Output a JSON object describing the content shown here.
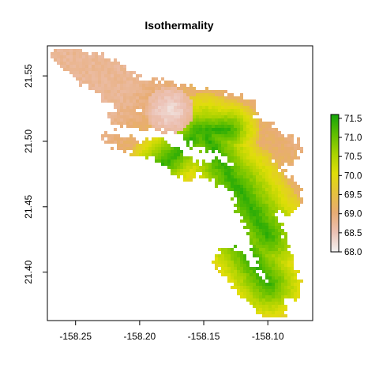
{
  "map": {
    "title": "Isothermality",
    "x_ticks": [
      "-158.25",
      "-158.20",
      "-158.15",
      "-158.10"
    ],
    "x_tick_values": [
      -158.25,
      -158.2,
      -158.15,
      -158.1
    ],
    "y_ticks": [
      "21.40",
      "21.45",
      "21.50",
      "21.55"
    ],
    "y_tick_values": [
      21.4,
      21.45,
      21.5,
      21.55
    ],
    "xlim": [
      -158.272,
      -158.065
    ],
    "ylim": [
      21.363,
      21.573
    ],
    "legend": {
      "labels": [
        "68.0",
        "68.5",
        "69.0",
        "69.5",
        "70.0",
        "70.5",
        "71.0",
        "71.5"
      ],
      "values": [
        68.0,
        68.5,
        69.0,
        69.5,
        70.0,
        70.5,
        71.0,
        71.5
      ],
      "range": [
        68.0,
        71.6
      ],
      "colors": [
        "#f2f2f2",
        "#ecc1b4",
        "#e8ac73",
        "#e5c23e",
        "#e0de08",
        "#a8d200",
        "#5fbe00",
        "#14a40a"
      ]
    }
  }
}
